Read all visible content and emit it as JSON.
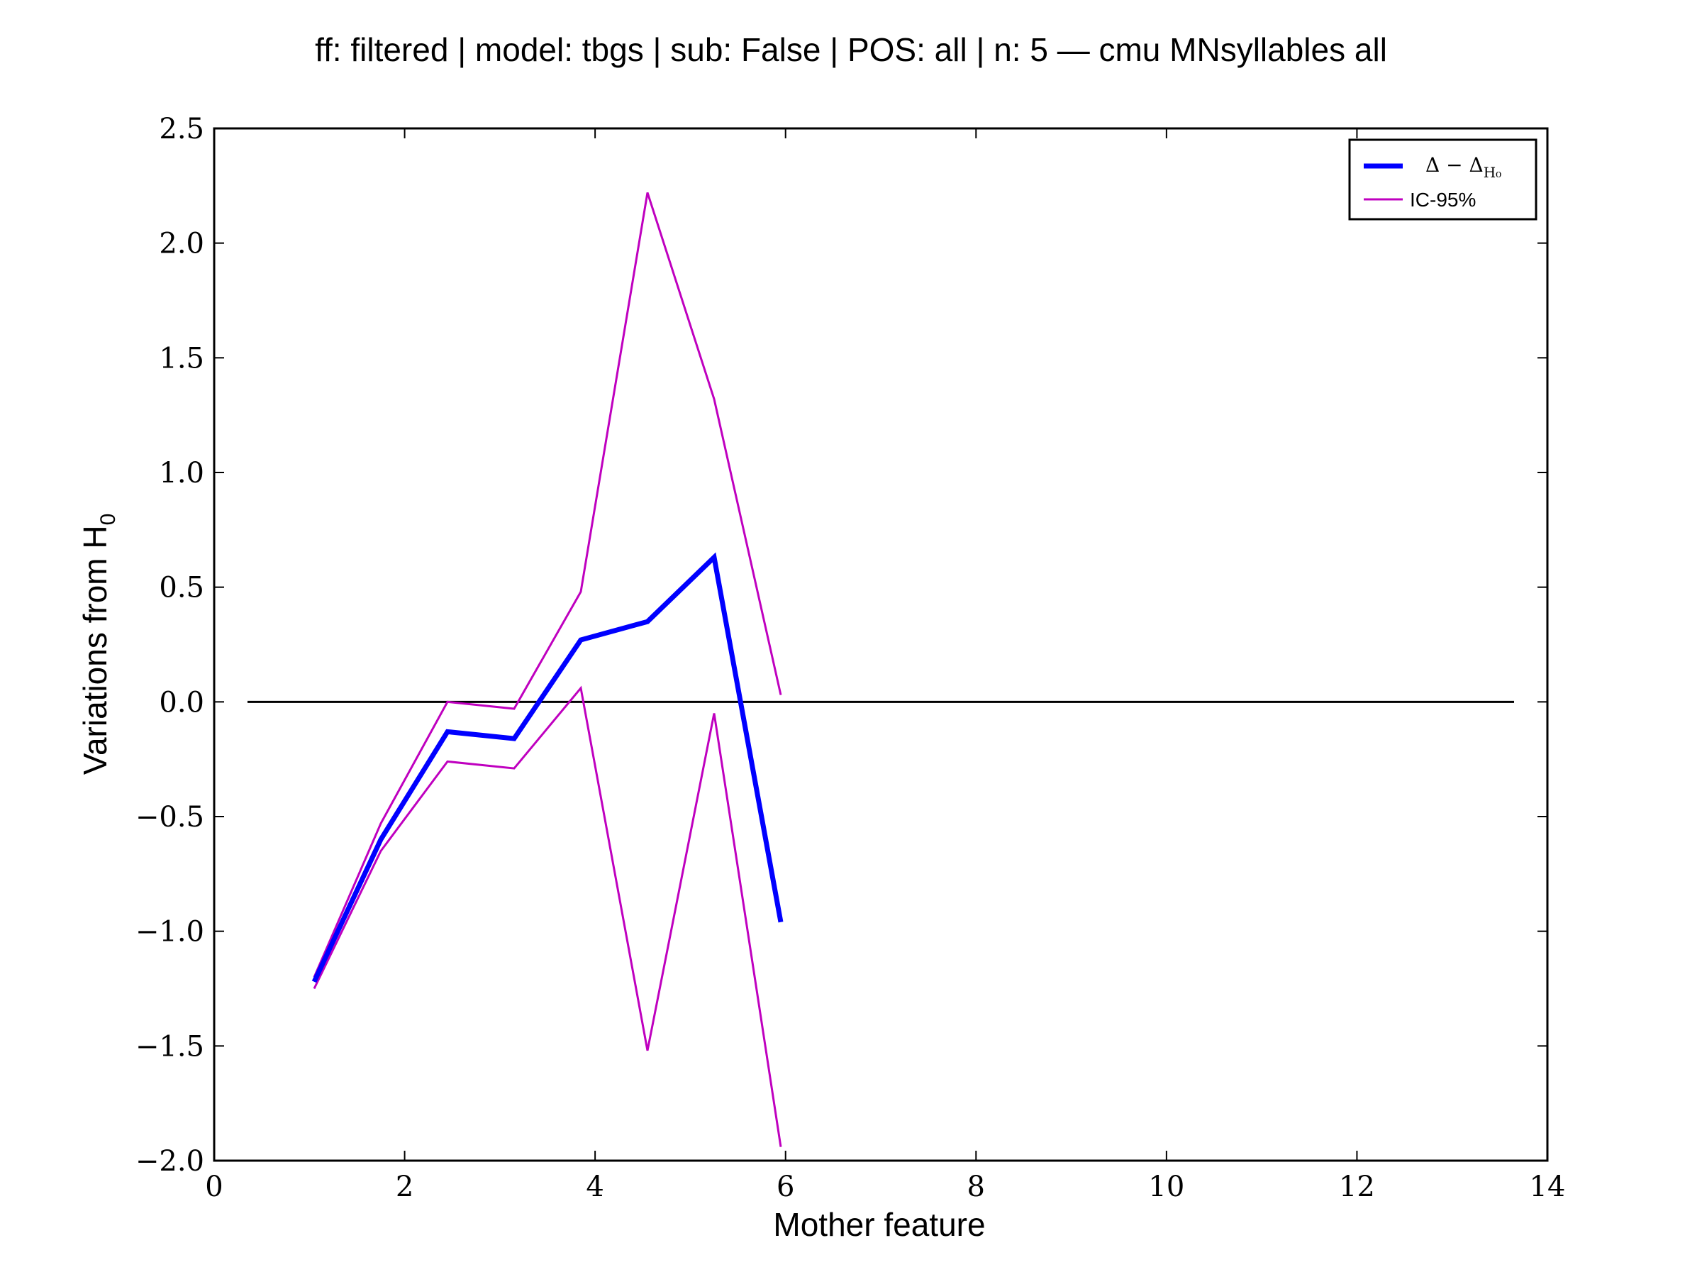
{
  "chart_data": {
    "type": "line",
    "title": "ff: filtered | model: tbgs | sub: False | POS: all | n: 5 — cmu MNsyllables all",
    "xlabel": "Mother feature",
    "ylabel": "Variations from H",
    "ylabel_sub": "0",
    "xlim": [
      0,
      14
    ],
    "ylim": [
      -2.0,
      2.5
    ],
    "x_ticks": [
      "0",
      "2",
      "4",
      "6",
      "8",
      "10",
      "12",
      "14"
    ],
    "y_ticks": [
      "2.5",
      "2.0",
      "1.5",
      "1.0",
      "0.5",
      "0.0",
      "−0.5",
      "−1.0",
      "−1.5",
      "−2.0"
    ],
    "x_tick_values": [
      0,
      2,
      4,
      6,
      8,
      10,
      12,
      14
    ],
    "y_tick_values": [
      2.5,
      2.0,
      1.5,
      1.0,
      0.5,
      0.0,
      -0.5,
      -1.0,
      -1.5,
      -2.0
    ],
    "legend_position": "top-right",
    "reference_line": {
      "y": 0.0,
      "x_range": [
        0.35,
        13.65
      ],
      "color": "#000000"
    },
    "series": [
      {
        "name": "Δ − Δ",
        "name_sub": "H₀",
        "color": "#0000ff",
        "style": "thick",
        "x": [
          1.05,
          1.75,
          2.45,
          3.15,
          3.85,
          4.55,
          5.25,
          5.95
        ],
        "y": [
          -1.22,
          -0.6,
          -0.13,
          -0.16,
          0.27,
          0.35,
          0.63,
          -0.96
        ]
      },
      {
        "name": "IC-95%",
        "color": "#bf00bf",
        "style": "thin",
        "x": [
          1.05,
          1.75,
          2.45,
          3.15,
          3.85,
          4.55,
          5.25,
          5.95
        ],
        "y": [
          -1.2,
          -0.53,
          0.0,
          -0.03,
          0.48,
          2.22,
          1.32,
          0.03
        ]
      },
      {
        "name": "",
        "color": "#bf00bf",
        "style": "thin",
        "x": [
          1.05,
          1.75,
          2.45,
          3.15,
          3.85,
          4.55,
          5.25,
          5.95
        ],
        "y": [
          -1.25,
          -0.65,
          -0.26,
          -0.29,
          0.06,
          -1.52,
          -0.05,
          -1.94
        ]
      }
    ]
  }
}
